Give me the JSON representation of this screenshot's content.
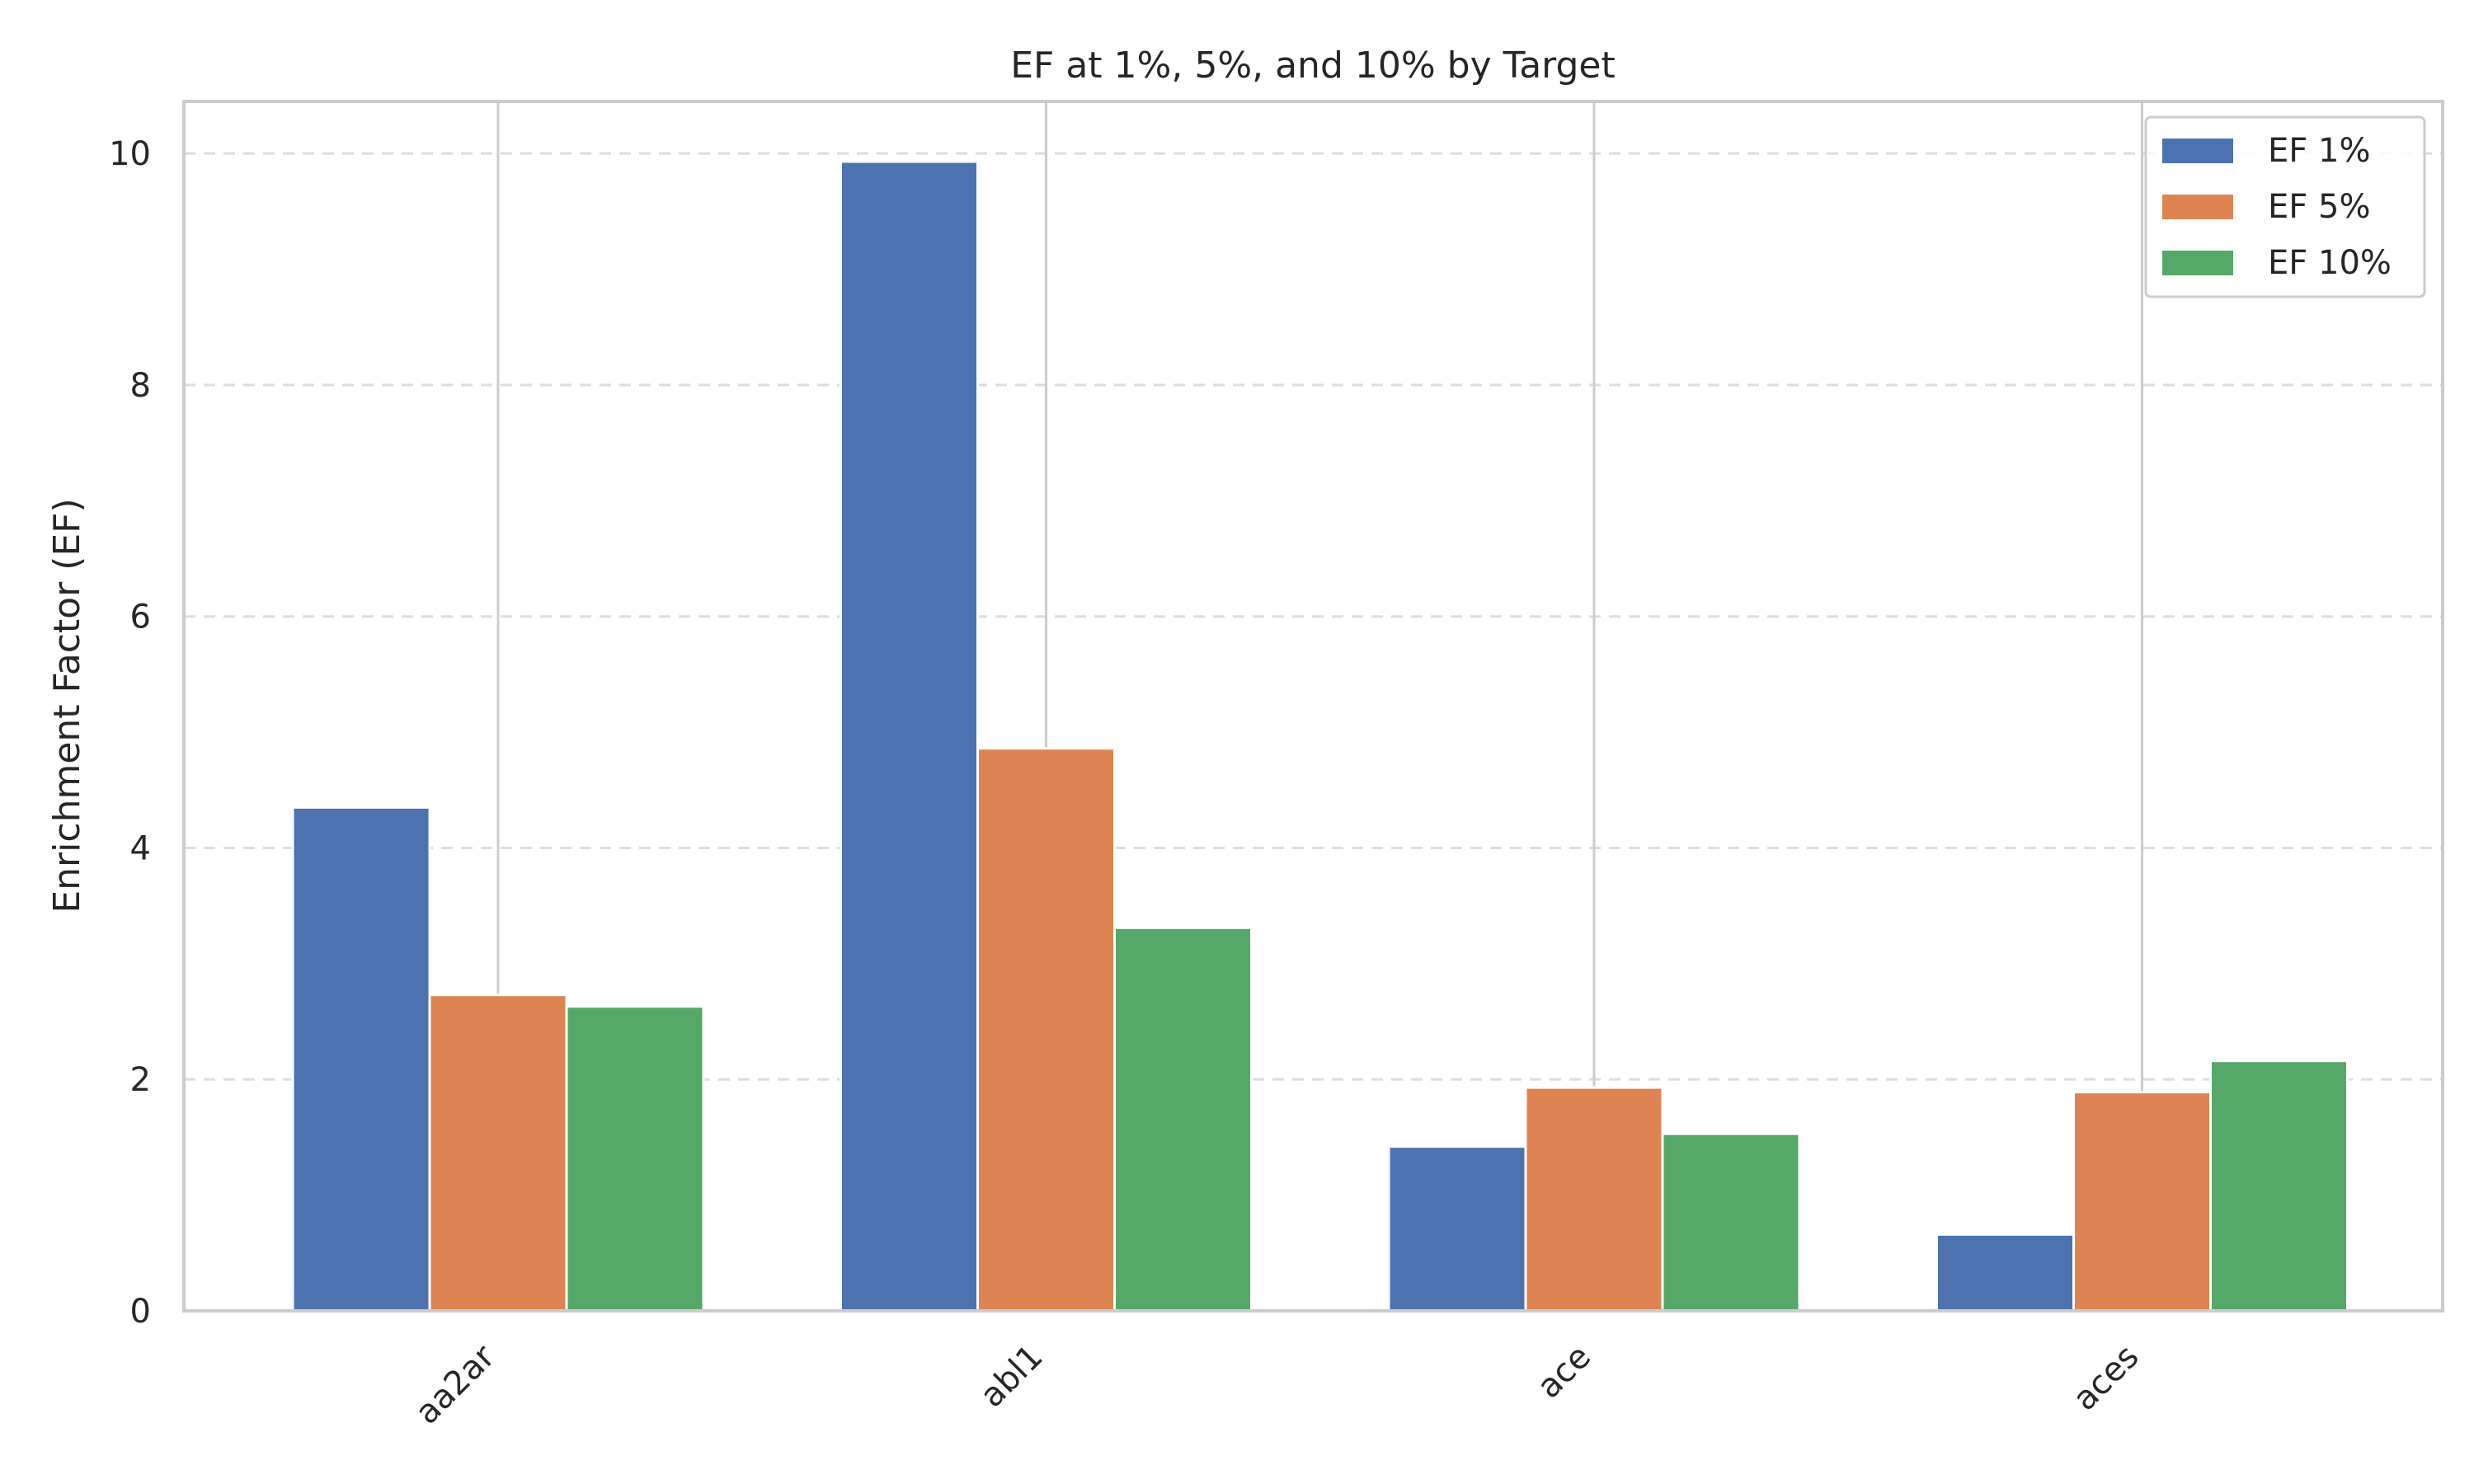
{
  "chart_data": {
    "type": "bar",
    "title": "EF at 1%, 5%, and 10% by Target",
    "xlabel": "",
    "ylabel": "Enrichment Factor (EF)",
    "ylim": [
      0,
      10.45
    ],
    "yticks": [
      0,
      2,
      4,
      6,
      8,
      10
    ],
    "categories": [
      "aa2ar",
      "abl1",
      "ace",
      "aces"
    ],
    "series": [
      {
        "name": "EF 1%",
        "color": "#4c72b0",
        "values": [
          4.35,
          9.93,
          1.42,
          0.66
        ]
      },
      {
        "name": "EF 5%",
        "color": "#dd8452",
        "values": [
          2.73,
          4.86,
          1.93,
          1.89
        ]
      },
      {
        "name": "EF 10%",
        "color": "#55a868",
        "values": [
          2.63,
          3.31,
          1.53,
          2.16
        ]
      }
    ],
    "grid": "y-dashed",
    "legend_position": "top-right"
  }
}
